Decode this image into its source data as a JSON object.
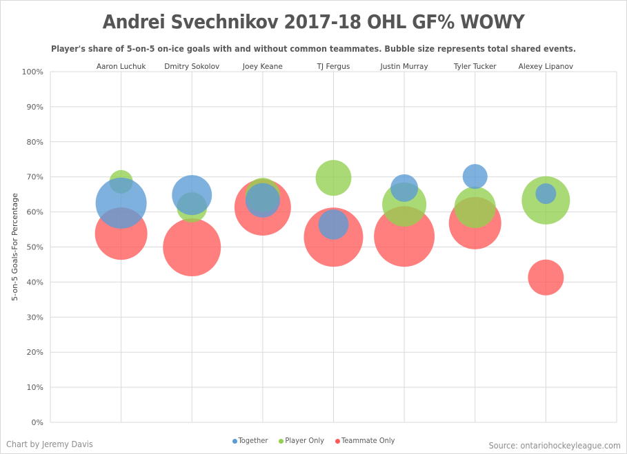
{
  "chart_data": {
    "type": "scatter",
    "subtype": "bubble",
    "title": "Andrei Svechnikov 2017-18 OHL GF% WOWY",
    "subtitle": "Player's share of 5-on-5 on-ice goals with and without common teammates. Bubble size represents total shared events.",
    "ylabel": "5-on-5 Goals-For Percentage",
    "xlabel": "",
    "ylim": [
      0,
      100
    ],
    "yticks": [
      "0%",
      "10%",
      "20%",
      "30%",
      "40%",
      "50%",
      "60%",
      "70%",
      "80%",
      "90%",
      "100%"
    ],
    "xlim": [
      0,
      8
    ],
    "categories": [
      "Aaron Luchuk",
      "Dmitry Sokolov",
      "Joey Keane",
      "TJ Fergus",
      "Justin Murray",
      "Tyler Tucker",
      "Alexey Lipanov"
    ],
    "grid": true,
    "legend_position": "bottom",
    "series": [
      {
        "name": "Together",
        "color": "#5B9BD5",
        "values": [
          62.5,
          64.8,
          63.3,
          56.4,
          66.8,
          70.1,
          65.2
        ],
        "sizes": [
          1370,
          840,
          625,
          480,
          400,
          325,
          225
        ]
      },
      {
        "name": "Player Only",
        "color": "#92D050",
        "values": [
          68.6,
          61.3,
          64.8,
          69.7,
          62.1,
          61.3,
          63.3
        ],
        "sizes": [
          290,
          480,
          625,
          675,
          1025,
          900,
          1225
        ]
      },
      {
        "name": "Teammate Only",
        "color": "#FF5B5B",
        "values": [
          53.8,
          49.9,
          61.3,
          52.8,
          53.0,
          56.8,
          41.3
        ],
        "sizes": [
          1445,
          1765,
          1680,
          1850,
          1935,
          1445,
          675
        ]
      }
    ]
  },
  "footer": {
    "credit": "Chart by Jeremy Davis",
    "source": "Source: ontariohockeyleague.com"
  }
}
